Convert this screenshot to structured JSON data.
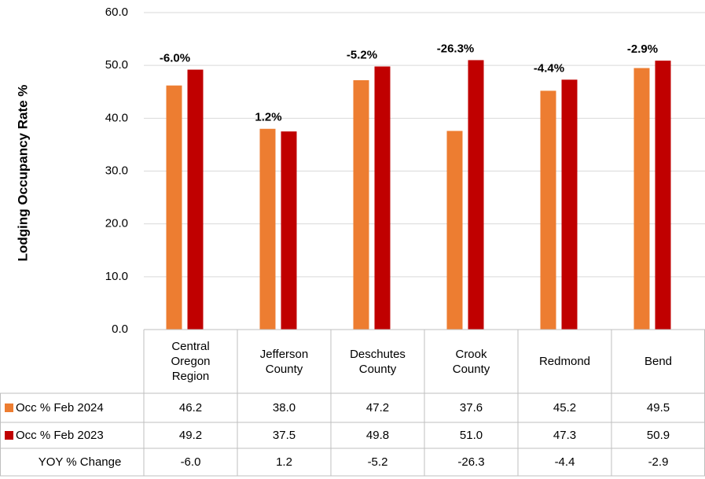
{
  "chart_data": {
    "type": "bar",
    "y_label": "Lodging Occupancy Rate %",
    "categories": [
      "Central Oregon Region",
      "Jefferson County",
      "Deschutes County",
      "Crook County",
      "Redmond",
      "Bend"
    ],
    "series": [
      {
        "name": "Occ % Feb 2024",
        "color": "#ED7D31",
        "values": [
          46.2,
          38.0,
          47.2,
          37.6,
          45.2,
          49.5
        ],
        "value_labels": [
          "46.2",
          "38.0",
          "47.2",
          "37.6",
          "45.2",
          "49.5"
        ]
      },
      {
        "name": "Occ % Feb 2023",
        "color": "#C00000",
        "values": [
          49.2,
          37.5,
          49.8,
          51.0,
          47.3,
          50.9
        ],
        "value_labels": [
          "49.2",
          "37.5",
          "49.8",
          "51.0",
          "47.3",
          "50.9"
        ]
      }
    ],
    "yoy": {
      "name": "YOY % Change",
      "values": [
        -6.0,
        1.2,
        -5.2,
        -26.3,
        -4.4,
        -2.9
      ],
      "value_labels": [
        "-6.0",
        "1.2",
        "-5.2",
        "-26.3",
        "-4.4",
        "-2.9"
      ],
      "annotations": [
        "-6.0%",
        "1.2%",
        "-5.2%",
        "-26.3%",
        "-4.4%",
        "-2.9%"
      ],
      "negative_color": "#FF0000",
      "positive_color": "#000000"
    },
    "ylim": [
      0,
      60
    ],
    "yticks": [
      {
        "value": 0,
        "label": "0.0"
      },
      {
        "value": 10,
        "label": "10.0"
      },
      {
        "value": 20,
        "label": "20.0"
      },
      {
        "value": 30,
        "label": "30.0"
      },
      {
        "value": 40,
        "label": "40.0"
      },
      {
        "value": 50,
        "label": "50.0"
      },
      {
        "value": 60,
        "label": "60.0"
      }
    ],
    "grid": true
  }
}
